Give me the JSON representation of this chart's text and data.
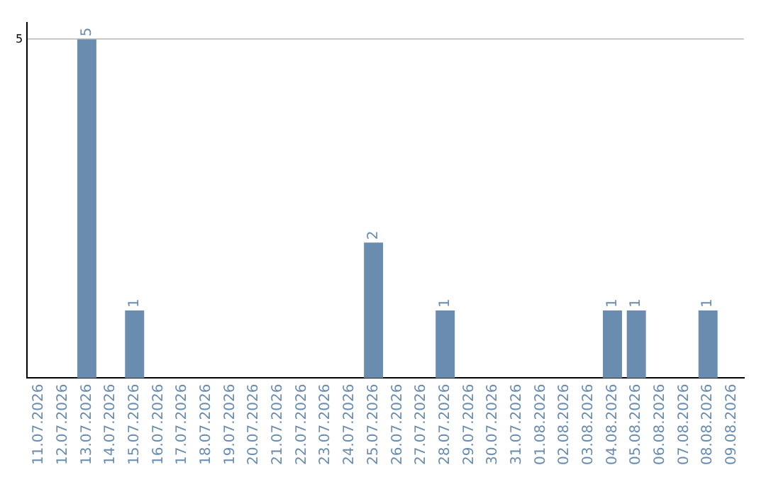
{
  "chart_data": {
    "type": "bar",
    "categories": [
      "11.07.2026",
      "12.07.2026",
      "13.07.2026",
      "14.07.2026",
      "15.07.2026",
      "16.07.2026",
      "17.07.2026",
      "18.07.2026",
      "19.07.2026",
      "20.07.2026",
      "21.07.2026",
      "22.07.2026",
      "23.07.2026",
      "24.07.2026",
      "25.07.2026",
      "26.07.2026",
      "27.07.2026",
      "28.07.2026",
      "29.07.2026",
      "30.07.2026",
      "31.07.2026",
      "01.08.2026",
      "02.08.2026",
      "03.08.2026",
      "04.08.2026",
      "05.08.2026",
      "06.08.2026",
      "07.08.2026",
      "08.08.2026",
      "09.08.2026"
    ],
    "values": [
      0,
      0,
      5,
      0,
      1,
      0,
      0,
      0,
      0,
      0,
      0,
      0,
      0,
      0,
      2,
      0,
      0,
      1,
      0,
      0,
      0,
      0,
      0,
      0,
      1,
      1,
      0,
      0,
      1,
      0
    ],
    "value_labels": [
      null,
      null,
      "5",
      null,
      "1",
      null,
      null,
      null,
      null,
      null,
      null,
      null,
      null,
      null,
      "2",
      null,
      null,
      "1",
      null,
      null,
      null,
      null,
      null,
      null,
      "1",
      "1",
      null,
      null,
      "1",
      null
    ],
    "color": "#6a8caf",
    "ylim": [
      0,
      5.25
    ],
    "yticks": [
      5
    ],
    "grid": "y",
    "legend": false
  }
}
